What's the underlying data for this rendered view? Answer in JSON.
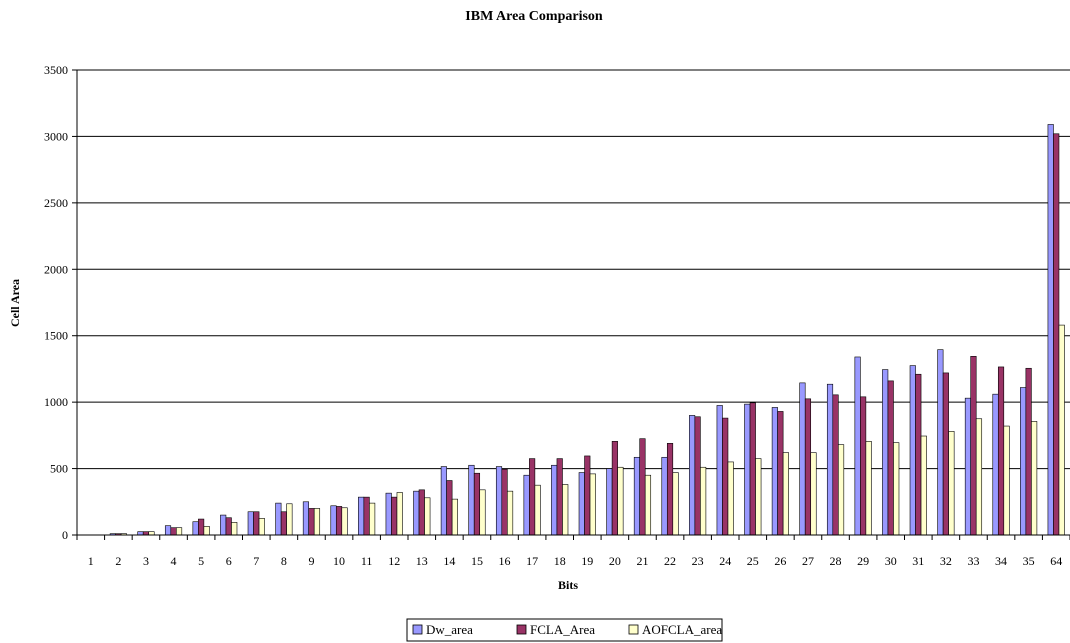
{
  "chart_data": {
    "type": "bar",
    "title": "IBM Area Comparison",
    "xlabel": "Bits",
    "ylabel": "Cell Area",
    "ylim": [
      0,
      3500
    ],
    "yticks": [
      0,
      500,
      1000,
      1500,
      2000,
      2500,
      3000,
      3500
    ],
    "grid": true,
    "legend_position": "bottom",
    "categories": [
      "1",
      "2",
      "3",
      "4",
      "5",
      "6",
      "7",
      "8",
      "9",
      "10",
      "11",
      "12",
      "13",
      "14",
      "15",
      "16",
      "17",
      "18",
      "19",
      "20",
      "21",
      "22",
      "23",
      "24",
      "25",
      "26",
      "27",
      "28",
      "29",
      "30",
      "31",
      "32",
      "33",
      "34",
      "35",
      "64"
    ],
    "series": [
      {
        "name": "Dw_area",
        "color": "#9999ff",
        "values": [
          0,
          10,
          25,
          70,
          100,
          150,
          175,
          240,
          250,
          220,
          285,
          315,
          330,
          515,
          525,
          515,
          450,
          525,
          470,
          500,
          585,
          585,
          900,
          975,
          985,
          960,
          1145,
          1135,
          1340,
          1245,
          1275,
          1395,
          1030,
          1060,
          1110,
          3090
        ]
      },
      {
        "name": "FCLA_Area",
        "color": "#993366",
        "values": [
          0,
          10,
          25,
          55,
          120,
          130,
          175,
          175,
          200,
          215,
          285,
          285,
          340,
          410,
          465,
          495,
          575,
          575,
          595,
          705,
          725,
          690,
          890,
          880,
          995,
          930,
          1025,
          1055,
          1040,
          1160,
          1210,
          1220,
          1345,
          1265,
          1255,
          3020
        ]
      },
      {
        "name": "AOFCLA_area",
        "color": "#ffffcc",
        "values": [
          0,
          10,
          25,
          55,
          65,
          95,
          125,
          235,
          200,
          205,
          240,
          320,
          280,
          270,
          340,
          330,
          375,
          380,
          460,
          510,
          450,
          470,
          510,
          550,
          575,
          620,
          620,
          680,
          705,
          695,
          745,
          780,
          875,
          820,
          855,
          1580
        ]
      }
    ]
  }
}
